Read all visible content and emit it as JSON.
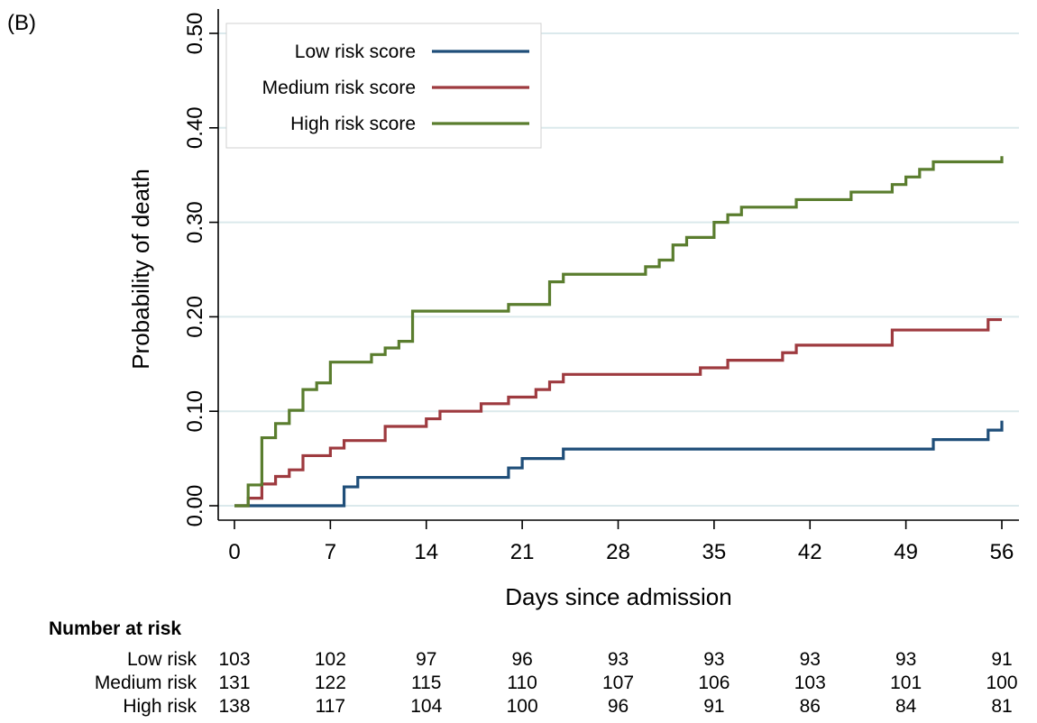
{
  "panel_label": "(B)",
  "chart_data": {
    "type": "line",
    "step": true,
    "xlabel": "Days since admission",
    "ylabel": "Probability of death",
    "xlim": [
      0,
      56
    ],
    "ylim": [
      0,
      0.5
    ],
    "xticks": [
      0,
      7,
      14,
      21,
      28,
      35,
      42,
      49,
      56
    ],
    "yticks": [
      0.0,
      0.1,
      0.2,
      0.3,
      0.4,
      0.5
    ],
    "ytick_labels": [
      "0.00",
      "0.10",
      "0.20",
      "0.30",
      "0.40",
      "0.50"
    ],
    "grid": true,
    "legend_position": "top-left",
    "series": [
      {
        "name": "Low risk score",
        "color": "#1f4e79",
        "points": [
          [
            0,
            0
          ],
          [
            8,
            0.02
          ],
          [
            9,
            0.03
          ],
          [
            20,
            0.04
          ],
          [
            21,
            0.05
          ],
          [
            24,
            0.06
          ],
          [
            51,
            0.07
          ],
          [
            55,
            0.08
          ],
          [
            56,
            0.09
          ]
        ]
      },
      {
        "name": "Medium risk score",
        "color": "#9e3a3f",
        "points": [
          [
            0,
            0
          ],
          [
            1,
            0.008
          ],
          [
            2,
            0.023
          ],
          [
            3,
            0.031
          ],
          [
            4,
            0.038
          ],
          [
            5,
            0.053
          ],
          [
            7,
            0.061
          ],
          [
            8,
            0.069
          ],
          [
            11,
            0.084
          ],
          [
            14,
            0.092
          ],
          [
            15,
            0.1
          ],
          [
            18,
            0.108
          ],
          [
            20,
            0.115
          ],
          [
            22,
            0.123
          ],
          [
            23,
            0.131
          ],
          [
            24,
            0.139
          ],
          [
            34,
            0.146
          ],
          [
            36,
            0.154
          ],
          [
            40,
            0.162
          ],
          [
            41,
            0.17
          ],
          [
            48,
            0.186
          ],
          [
            55,
            0.197
          ]
        ]
      },
      {
        "name": "High risk score",
        "color": "#5a7d2e",
        "points": [
          [
            0,
            0
          ],
          [
            1,
            0.022
          ],
          [
            2,
            0.072
          ],
          [
            3,
            0.087
          ],
          [
            4,
            0.101
          ],
          [
            5,
            0.123
          ],
          [
            6,
            0.13
          ],
          [
            7,
            0.152
          ],
          [
            10,
            0.16
          ],
          [
            11,
            0.167
          ],
          [
            12,
            0.174
          ],
          [
            13,
            0.206
          ],
          [
            20,
            0.213
          ],
          [
            23,
            0.237
          ],
          [
            24,
            0.245
          ],
          [
            30,
            0.253
          ],
          [
            31,
            0.26
          ],
          [
            32,
            0.276
          ],
          [
            33,
            0.284
          ],
          [
            35,
            0.3
          ],
          [
            36,
            0.308
          ],
          [
            37,
            0.316
          ],
          [
            41,
            0.324
          ],
          [
            45,
            0.332
          ],
          [
            48,
            0.34
          ],
          [
            49,
            0.348
          ],
          [
            50,
            0.356
          ],
          [
            51,
            0.364
          ],
          [
            56,
            0.37
          ]
        ]
      }
    ]
  },
  "risk_table": {
    "title": "Number at risk",
    "rows": [
      {
        "label": "Low risk",
        "values": [
          103,
          102,
          97,
          96,
          93,
          93,
          93,
          93,
          91
        ]
      },
      {
        "label": "Medium risk",
        "values": [
          131,
          122,
          115,
          110,
          107,
          106,
          103,
          101,
          100
        ]
      },
      {
        "label": "High risk",
        "values": [
          138,
          117,
          104,
          100,
          96,
          91,
          86,
          84,
          81
        ]
      }
    ]
  }
}
